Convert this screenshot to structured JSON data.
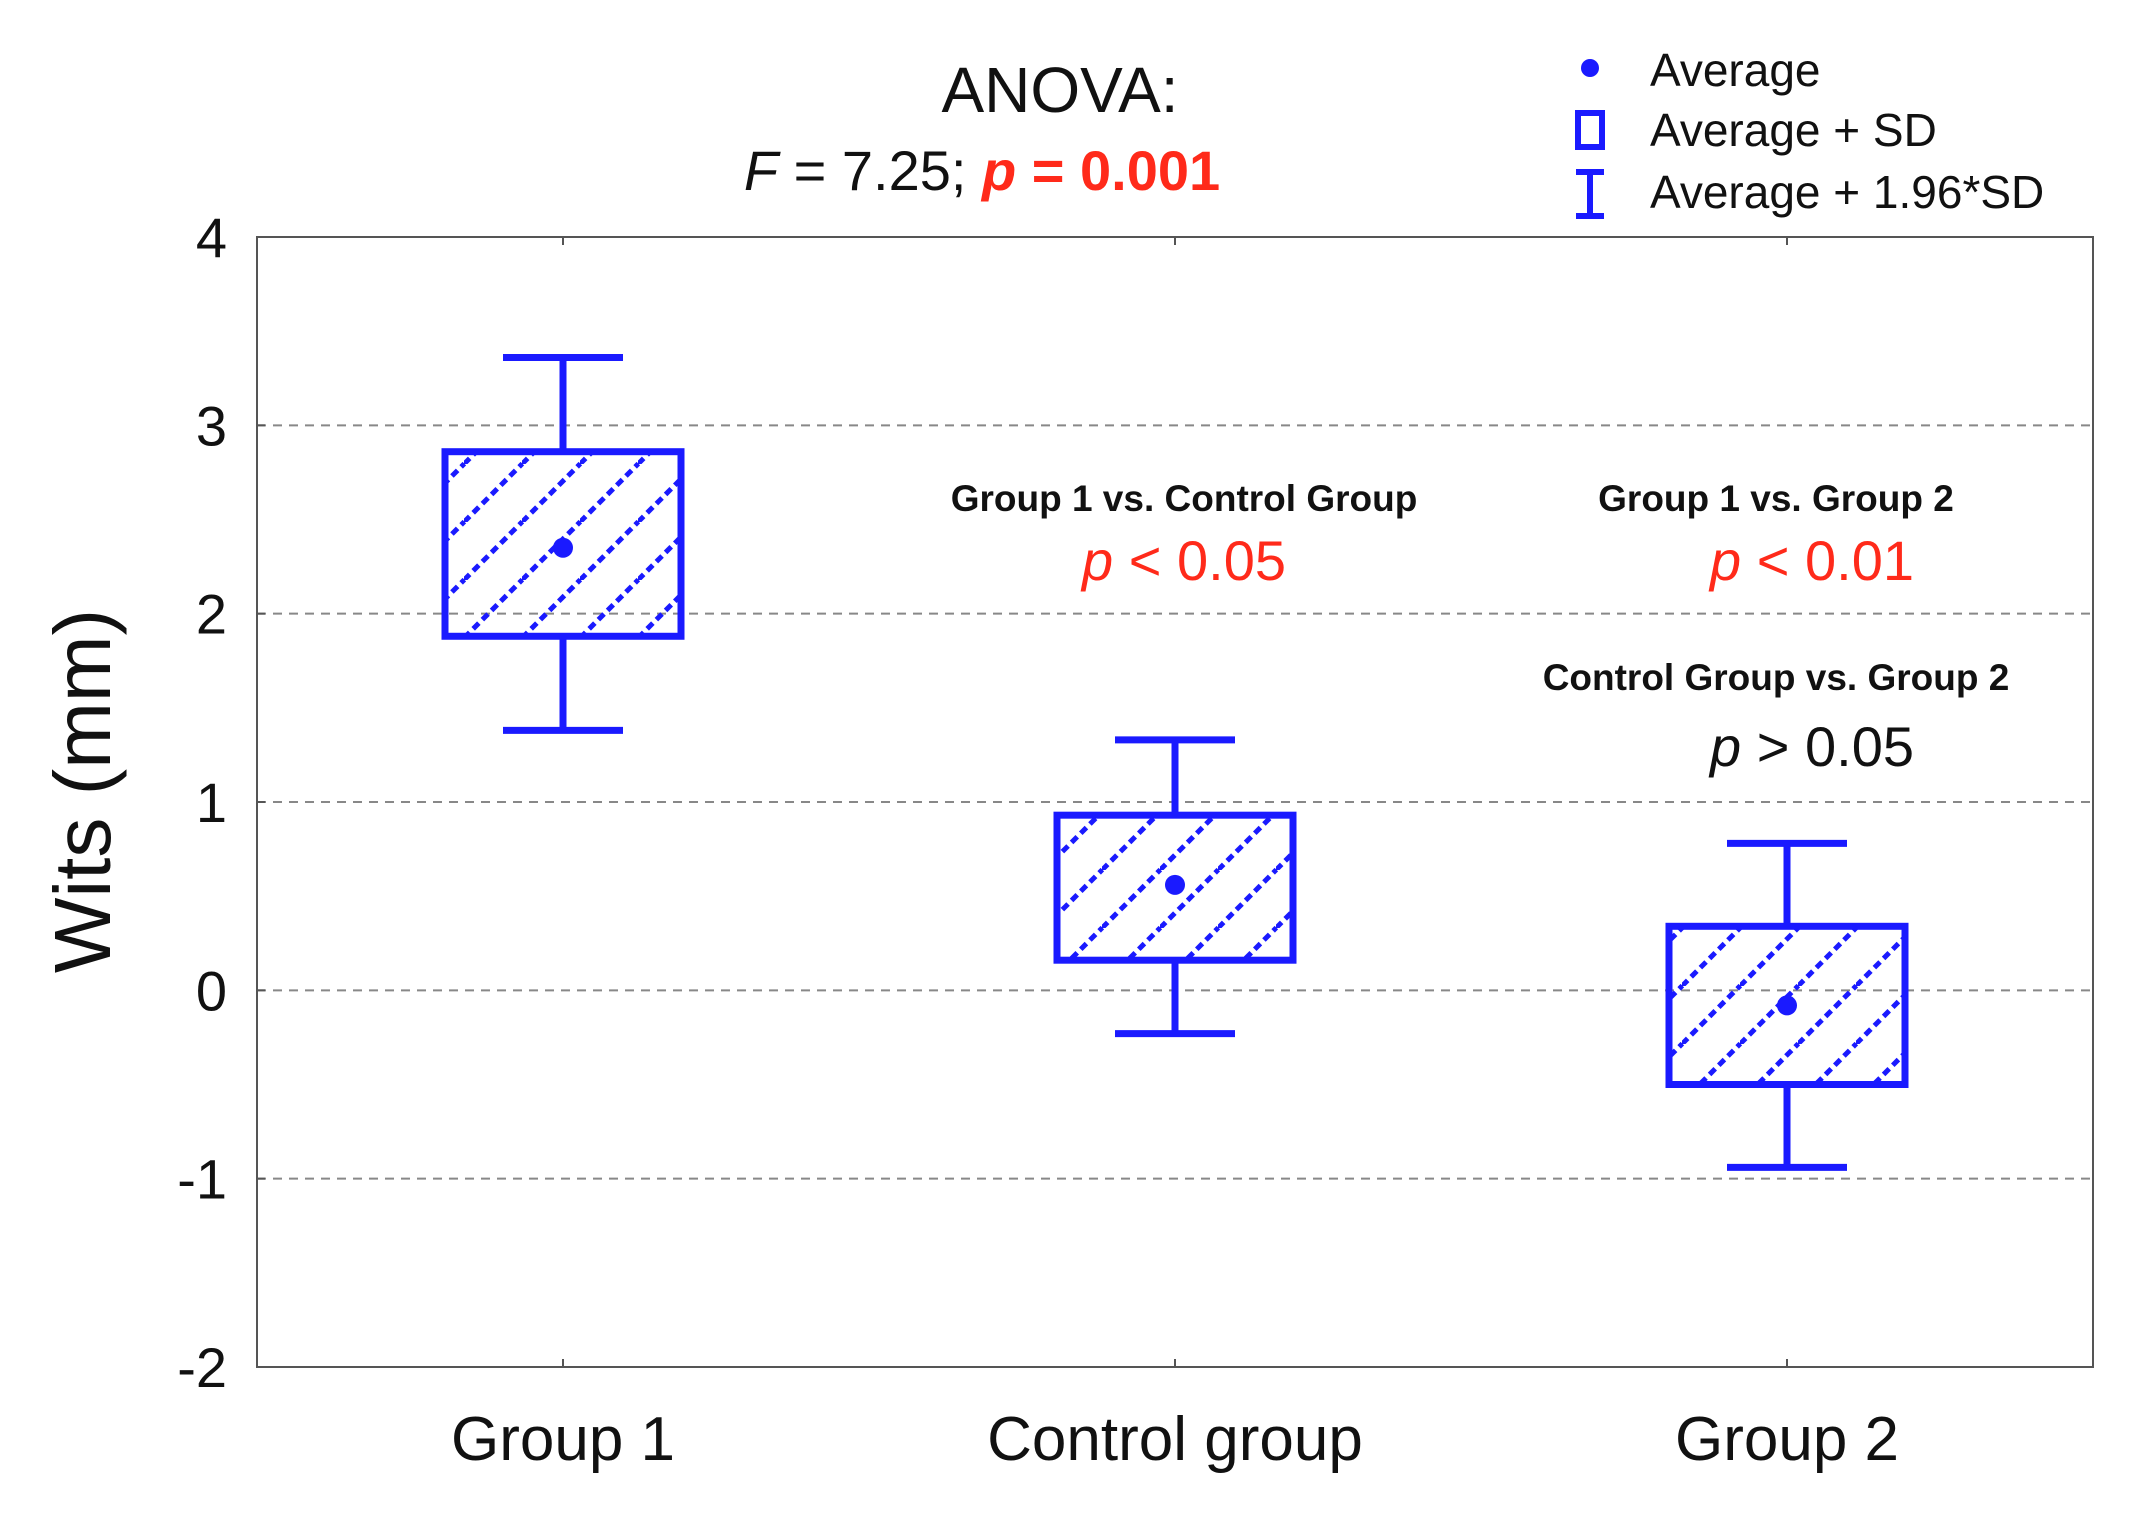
{
  "chart_data": {
    "type": "box",
    "title": "ANOVA:",
    "subtitle": {
      "f_symbol": "F",
      "f_value": " = 7.25; ",
      "p_symbol": "p",
      "p_value": " = 0.001"
    },
    "xlabel": "",
    "ylabel": "Wits (mm)",
    "ylim": [
      -2,
      4
    ],
    "yticks": [
      -2,
      -1,
      0,
      1,
      2,
      3,
      4
    ],
    "ytick_labels": [
      "-2",
      "-1",
      "0",
      "1",
      "2",
      "3",
      "4"
    ],
    "grid": "horizontal dashed",
    "categories": [
      "Group 1",
      "Control group",
      "Group 2"
    ],
    "series": [
      {
        "name": "Group 1",
        "average": 2.35,
        "sd_low": 1.88,
        "sd_high": 2.86,
        "whisker_low": 1.38,
        "whisker_high": 3.36
      },
      {
        "name": "Control group",
        "average": 0.56,
        "sd_low": 0.16,
        "sd_high": 0.93,
        "whisker_low": -0.23,
        "whisker_high": 1.33
      },
      {
        "name": "Group 2",
        "average": -0.08,
        "sd_low": -0.5,
        "sd_high": 0.34,
        "whisker_low": -0.94,
        "whisker_high": 0.78
      }
    ],
    "legend": {
      "placement": "top-right",
      "entries": [
        "Average",
        "Average + SD",
        "Average + 1.96*SD"
      ]
    },
    "annotations": [
      {
        "title": "Group 1 vs. Control Group",
        "p_symbol": "p",
        "p_text": " < 0.05",
        "significant": true
      },
      {
        "title": "Group 1 vs. Group 2",
        "p_symbol": "p",
        "p_text": " < 0.01",
        "significant": true
      },
      {
        "title": "Control Group vs. Group 2",
        "p_symbol": "p",
        "p_text": " > 0.05",
        "significant": false
      }
    ],
    "colors": {
      "box": "#1a1aff",
      "significant": "#ff2a1a",
      "text": "#111111",
      "grid": "#888888"
    }
  }
}
